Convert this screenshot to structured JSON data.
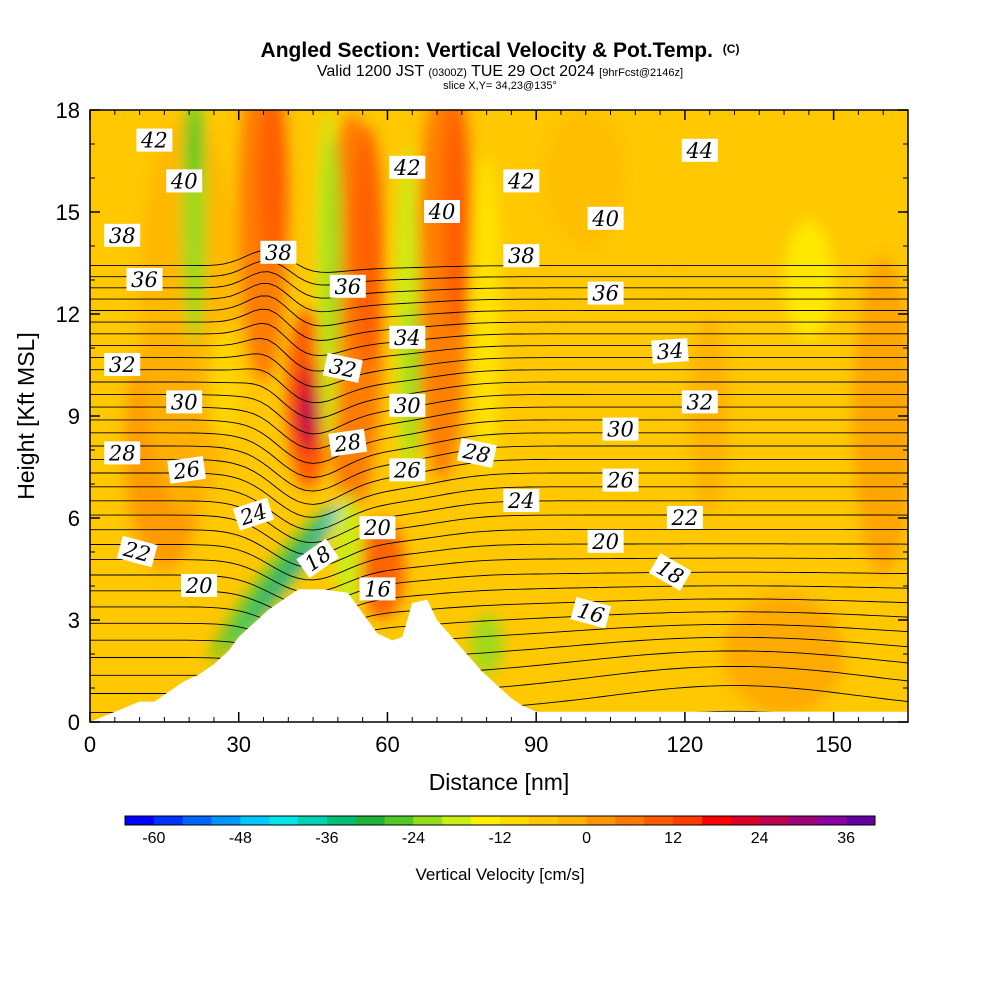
{
  "chart_data": {
    "type": "heatmap",
    "title": {
      "main": "Angled Section: Vertical Velocity & Pot.Temp.",
      "main_suffix": "(C)",
      "valid_prefix": "Valid 1200 JST",
      "valid_small": "(0300Z)",
      "valid_date": "TUE 29 Oct 2024",
      "valid_fcst": "[9hrFcst@2146z]",
      "slice": "slice X,Y= 34,23@135°"
    },
    "xlabel": "Distance [nm]",
    "ylabel": "Height [Kft MSL]",
    "xlim": [
      0,
      165
    ],
    "ylim": [
      0,
      18
    ],
    "xticks": [
      "0",
      "30",
      "60",
      "90",
      "120",
      "150"
    ],
    "yticks": [
      "0",
      "3",
      "6",
      "9",
      "12",
      "15",
      "18"
    ],
    "colorbar": {
      "label": "Vertical Velocity [cm/s]",
      "ticks": [
        "-60",
        "-48",
        "-36",
        "-24",
        "-12",
        "0",
        "12",
        "24",
        "36"
      ],
      "min": -64,
      "max": 40,
      "step": 4,
      "colors": [
        "#0000ff",
        "#0032ff",
        "#0064ff",
        "#0096ff",
        "#00c8ff",
        "#00e6e6",
        "#00d2b4",
        "#00be78",
        "#1eb43c",
        "#50c828",
        "#96dc1e",
        "#c8f014",
        "#fff000",
        "#ffdc00",
        "#ffc800",
        "#ffb400",
        "#ff9600",
        "#ff7800",
        "#ff5a00",
        "#ff3c00",
        "#ff0000",
        "#dc0028",
        "#be0050",
        "#a00078",
        "#8c00a0",
        "#6400a0"
      ]
    },
    "terrain": [
      [
        0,
        0
      ],
      [
        10,
        0.6
      ],
      [
        13,
        0.6
      ],
      [
        16,
        0.9
      ],
      [
        19,
        1.2
      ],
      [
        22,
        1.4
      ],
      [
        25,
        1.7
      ],
      [
        28,
        2.1
      ],
      [
        30,
        2.5
      ],
      [
        33,
        2.9
      ],
      [
        36,
        3.3
      ],
      [
        39,
        3.6
      ],
      [
        42,
        3.9
      ],
      [
        47,
        3.9
      ],
      [
        52,
        3.8
      ],
      [
        55,
        3.2
      ],
      [
        58,
        2.6
      ],
      [
        61,
        2.4
      ],
      [
        63,
        2.5
      ],
      [
        65,
        3.5
      ],
      [
        68,
        3.6
      ],
      [
        70,
        3.0
      ],
      [
        73,
        2.5
      ],
      [
        76,
        2.0
      ],
      [
        79,
        1.5
      ],
      [
        82,
        1.1
      ],
      [
        85,
        0.7
      ],
      [
        87,
        0.5
      ],
      [
        90,
        0.3
      ],
      [
        165,
        0.3
      ]
    ],
    "theta_labels": [
      {
        "t": "42",
        "x": 13,
        "y": 17.1,
        "a": 0
      },
      {
        "t": "40",
        "x": 19,
        "y": 15.9,
        "a": 0
      },
      {
        "t": "38",
        "x": 6.5,
        "y": 14.3,
        "a": 0
      },
      {
        "t": "36",
        "x": 11,
        "y": 13.0,
        "a": 0
      },
      {
        "t": "32",
        "x": 6.5,
        "y": 10.5,
        "a": 0
      },
      {
        "t": "30",
        "x": 19,
        "y": 9.4,
        "a": 0
      },
      {
        "t": "28",
        "x": 6.5,
        "y": 7.9,
        "a": 0
      },
      {
        "t": "26",
        "x": 19.5,
        "y": 7.4,
        "a": -8
      },
      {
        "t": "24",
        "x": 33,
        "y": 6.1,
        "a": -18
      },
      {
        "t": "22",
        "x": 9.5,
        "y": 5.0,
        "a": 15
      },
      {
        "t": "20",
        "x": 22,
        "y": 4.0,
        "a": 0
      },
      {
        "t": "18",
        "x": 46,
        "y": 4.8,
        "a": -35
      },
      {
        "t": "16",
        "x": 58,
        "y": 3.9,
        "a": 0
      },
      {
        "t": "38",
        "x": 38,
        "y": 13.8,
        "a": 0
      },
      {
        "t": "36",
        "x": 52,
        "y": 12.8,
        "a": 0
      },
      {
        "t": "34",
        "x": 64,
        "y": 11.3,
        "a": 0
      },
      {
        "t": "32",
        "x": 51,
        "y": 10.4,
        "a": 12
      },
      {
        "t": "30",
        "x": 64,
        "y": 9.3,
        "a": 0
      },
      {
        "t": "28",
        "x": 52,
        "y": 8.2,
        "a": -8
      },
      {
        "t": "26",
        "x": 64,
        "y": 7.4,
        "a": 0
      },
      {
        "t": "28",
        "x": 78,
        "y": 7.9,
        "a": 12
      },
      {
        "t": "20",
        "x": 58,
        "y": 5.7,
        "a": 0
      },
      {
        "t": "42",
        "x": 64,
        "y": 16.3,
        "a": 0
      },
      {
        "t": "40",
        "x": 71,
        "y": 15.0,
        "a": 0
      },
      {
        "t": "42",
        "x": 87,
        "y": 15.9,
        "a": 0
      },
      {
        "t": "38",
        "x": 87,
        "y": 13.7,
        "a": 0
      },
      {
        "t": "24",
        "x": 87,
        "y": 6.5,
        "a": 0
      },
      {
        "t": "44",
        "x": 123,
        "y": 16.8,
        "a": 0
      },
      {
        "t": "40",
        "x": 104,
        "y": 14.8,
        "a": 0
      },
      {
        "t": "36",
        "x": 104,
        "y": 12.6,
        "a": 0
      },
      {
        "t": "34",
        "x": 117,
        "y": 10.9,
        "a": -4
      },
      {
        "t": "32",
        "x": 123,
        "y": 9.4,
        "a": 0
      },
      {
        "t": "30",
        "x": 107,
        "y": 8.6,
        "a": 0
      },
      {
        "t": "26",
        "x": 107,
        "y": 7.1,
        "a": 0
      },
      {
        "t": "22",
        "x": 120,
        "y": 6.0,
        "a": 0
      },
      {
        "t": "20",
        "x": 104,
        "y": 5.3,
        "a": 0
      },
      {
        "t": "18",
        "x": 117,
        "y": 4.4,
        "a": 30
      },
      {
        "t": "16",
        "x": 101,
        "y": 3.2,
        "a": 15
      }
    ]
  }
}
